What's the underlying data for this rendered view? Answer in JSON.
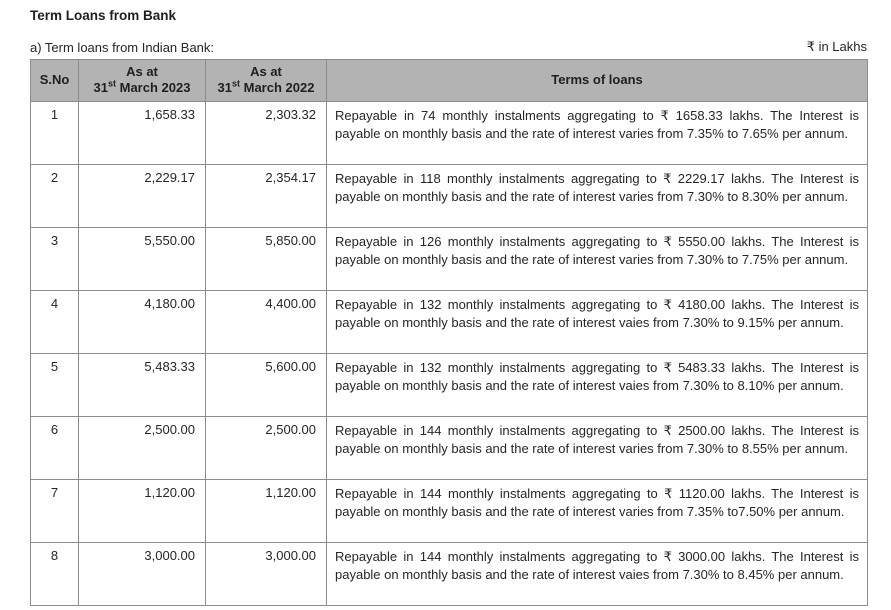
{
  "page": {
    "title": "Term Loans from Bank",
    "subtitle": "a) Term loans from Indian Bank:",
    "unit_label": "₹  in Lakhs"
  },
  "table": {
    "headers": {
      "sno": "S.No",
      "col2023_line1": "As at",
      "col2023_day": "31",
      "col2023_sup": "st",
      "col2023_rest": " March 2023",
      "col2022_line1": "As at",
      "col2022_day": "31",
      "col2022_sup": "st",
      "col2022_rest": " March 2022",
      "terms": "Terms of loans"
    },
    "rows": [
      {
        "sno": "1",
        "as_at_2023": "1,658.33",
        "as_at_2022": "2,303.32",
        "terms": "Repayable in 74 monthly instalments aggregating to ₹ 1658.33 lakhs. The Interest is payable on monthly basis and the rate of  interest varies from  7.35%  to 7.65% per annum."
      },
      {
        "sno": "2",
        "as_at_2023": "2,229.17",
        "as_at_2022": "2,354.17",
        "terms": "Repayable in 118 monthly instalments aggregating to ₹ 2229.17 lakhs. The Interest is payable on monthly basis and the rate of  interest varies from 7.30%  to 8.30% per annum."
      },
      {
        "sno": "3",
        "as_at_2023": "5,550.00",
        "as_at_2022": "5,850.00",
        "terms": "Repayable in 126 monthly instalments aggregating to ₹ 5550.00 lakhs. The Interest is payable on monthly basis and the rate of  interest varies from 7.30% to 7.75% per annum."
      },
      {
        "sno": "4",
        "as_at_2023": "4,180.00",
        "as_at_2022": "4,400.00",
        "terms": "Repayable in 132 monthly instalments aggregating to ₹ 4180.00 lakhs. The Interest is payable on monthly basis and the rate of  interest vaies from 7.30% to 9.15% per annum."
      },
      {
        "sno": "5",
        "as_at_2023": "5,483.33",
        "as_at_2022": "5,600.00",
        "terms": "Repayable in 132 monthly instalments aggregating to ₹ 5483.33 lakhs. The Interest is payable on monthly basis and the rate of  interest vaies from 7.30%  to 8.10% per annum."
      },
      {
        "sno": "6",
        "as_at_2023": "2,500.00",
        "as_at_2022": "2,500.00",
        "terms": "Repayable in 144 monthly instalments aggregating to ₹ 2500.00 lakhs. The Interest is payable on monthly basis and the rate of  interest varies from 7.30% to 8.55% per annum."
      },
      {
        "sno": "7",
        "as_at_2023": "1,120.00",
        "as_at_2022": "1,120.00",
        "terms": "Repayable in 144 monthly instalments aggregating to ₹ 1120.00 lakhs. The Interest is payable on monthly basis and the rate of  interest varies from 7.35% to7.50% per annum."
      },
      {
        "sno": "8",
        "as_at_2023": "3,000.00",
        "as_at_2022": "3,000.00",
        "terms": "Repayable in 144 monthly instalments aggregating to ₹ 3000.00 lakhs. The Interest is payable on monthly basis and the rate of  interest vaies from 7.30%  to 8.45% per annum."
      }
    ]
  }
}
